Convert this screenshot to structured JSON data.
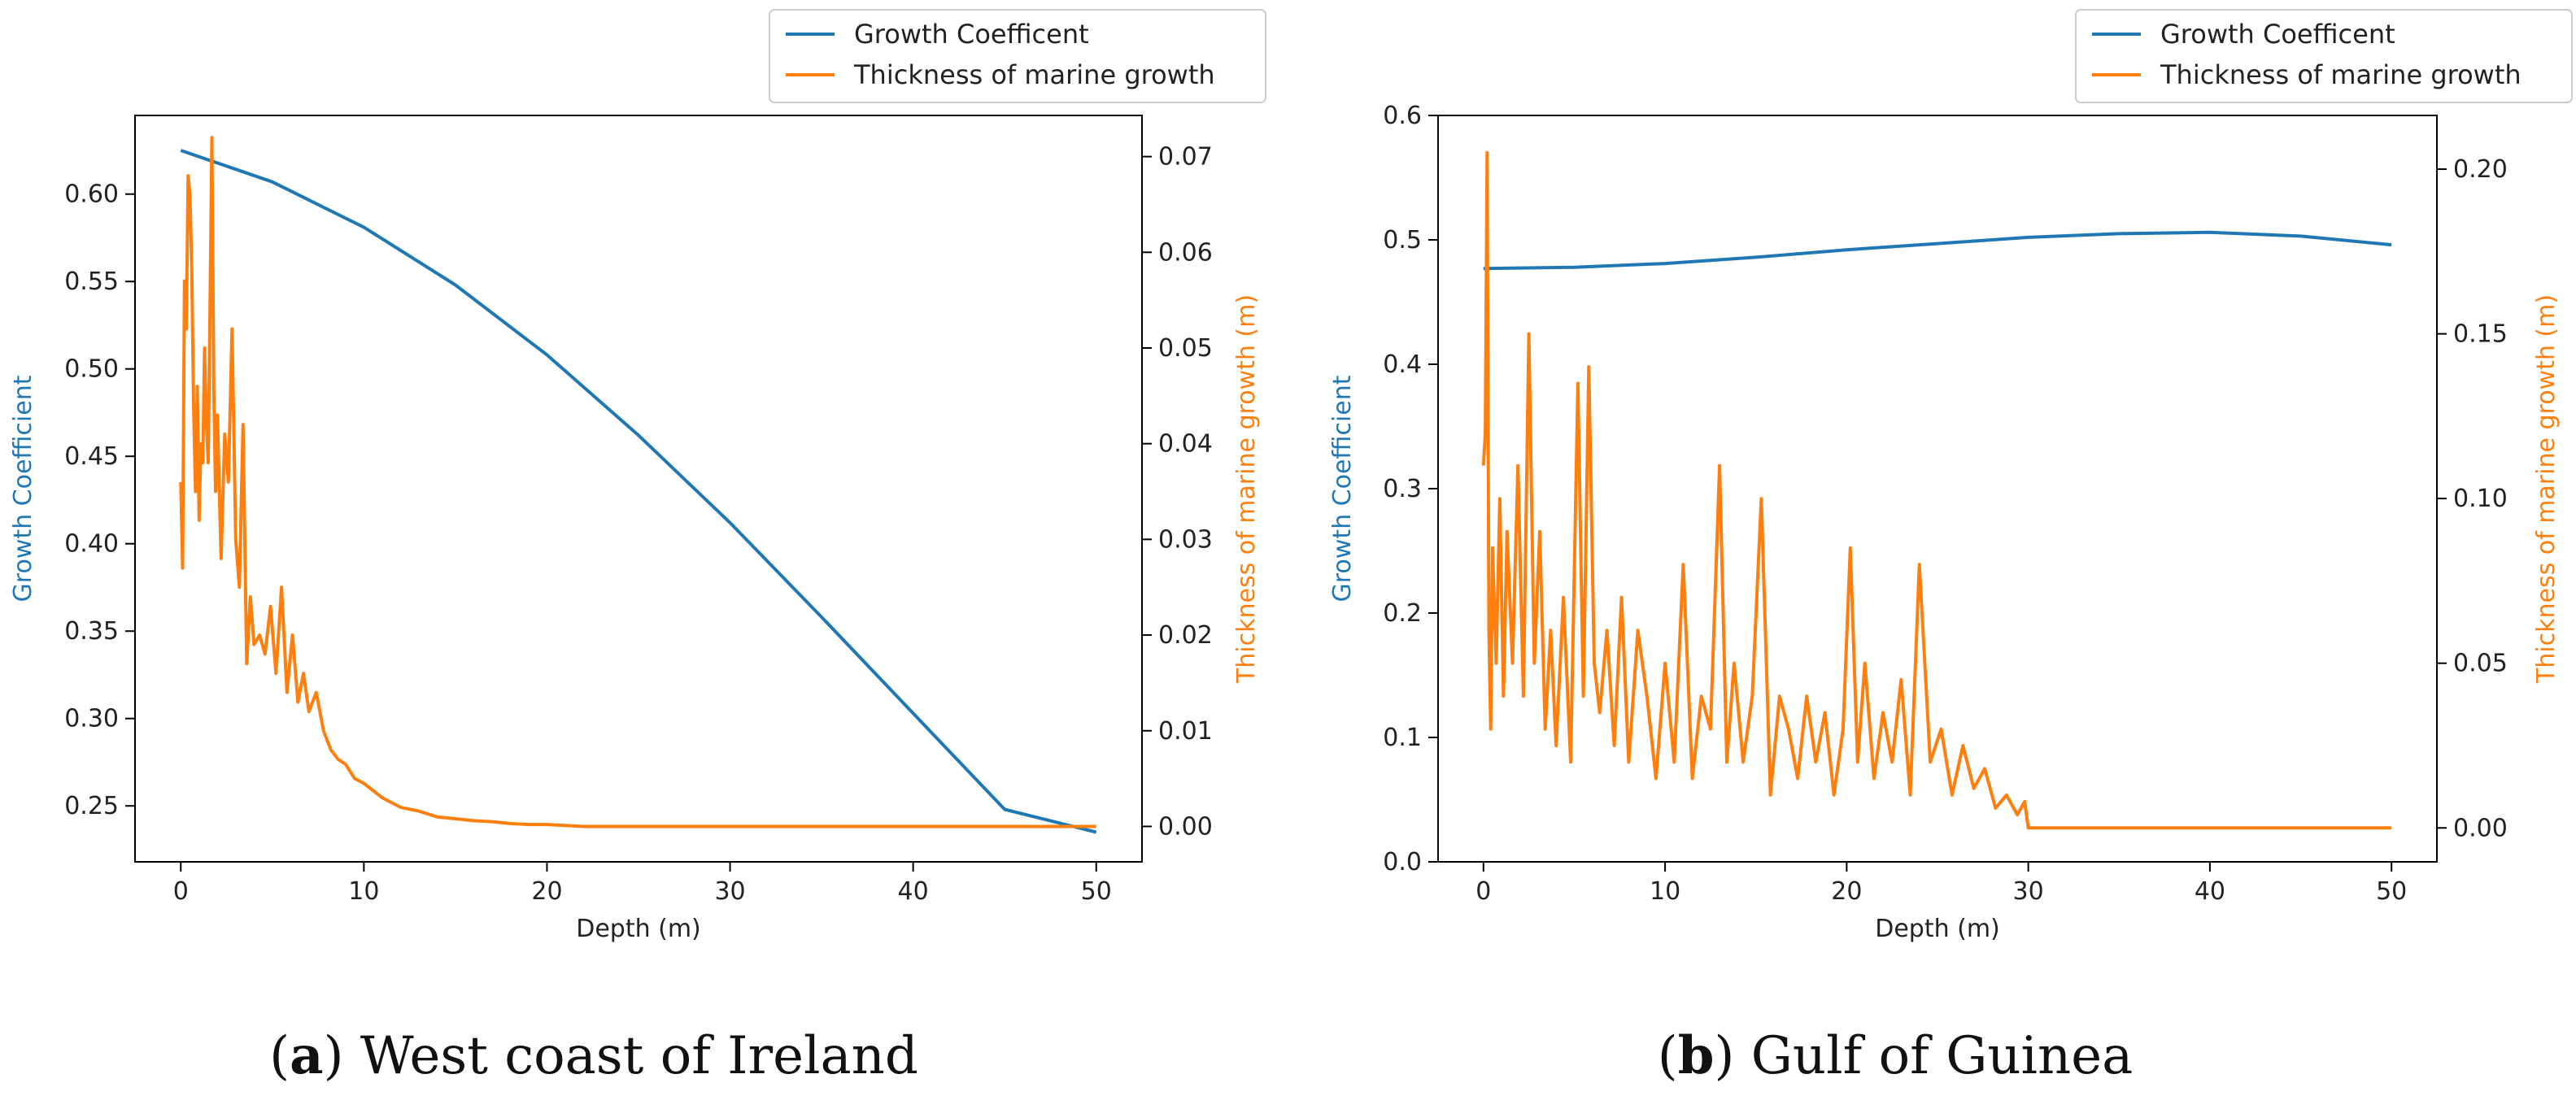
{
  "colors": {
    "coef": "#1f77b4",
    "thick": "#ff7f0e",
    "axis": "#000000"
  },
  "legend": [
    "Growth Coefficent",
    "Thickness of marine growth"
  ],
  "chart_data": [
    {
      "type": "line",
      "panel_letter": "a",
      "caption": "West coast of Ireland",
      "xlabel": "Depth (m)",
      "ylabel_left": "Growth Coefficient",
      "ylabel_right": "Thickness of marine growth (m)",
      "xlim": [
        -2.5,
        52.5
      ],
      "ylim_left": [
        0.218,
        0.645
      ],
      "ylim_right": [
        -0.0037,
        0.0743
      ],
      "xticks": [
        0,
        10,
        20,
        30,
        40,
        50
      ],
      "xtick_labels": [
        "0",
        "10",
        "20",
        "30",
        "40",
        "50"
      ],
      "yticks_left": [
        0.25,
        0.3,
        0.35,
        0.4,
        0.45,
        0.5,
        0.55,
        0.6
      ],
      "ytick_labels_left": [
        "0.25",
        "0.30",
        "0.35",
        "0.40",
        "0.45",
        "0.50",
        "0.55",
        "0.60"
      ],
      "yticks_right": [
        0.0,
        0.01,
        0.02,
        0.03,
        0.04,
        0.05,
        0.06,
        0.07
      ],
      "ytick_labels_right": [
        "0.00",
        "0.01",
        "0.02",
        "0.03",
        "0.04",
        "0.05",
        "0.06",
        "0.07"
      ],
      "series": [
        {
          "name": "Growth Coefficent",
          "axis": "left",
          "x": [
            0,
            5,
            10,
            15,
            20,
            25,
            30,
            35,
            40,
            45,
            50
          ],
          "y": [
            0.625,
            0.607,
            0.581,
            0.548,
            0.508,
            0.462,
            0.412,
            0.358,
            0.303,
            0.248,
            0.235
          ]
        },
        {
          "name": "Thickness of marine growth",
          "axis": "right",
          "x": [
            0,
            0.1,
            0.2,
            0.3,
            0.4,
            0.5,
            0.6,
            0.7,
            0.8,
            0.9,
            1.0,
            1.1,
            1.2,
            1.3,
            1.4,
            1.5,
            1.6,
            1.7,
            1.8,
            1.9,
            2.0,
            2.2,
            2.4,
            2.6,
            2.8,
            3.0,
            3.2,
            3.4,
            3.6,
            3.8,
            4.0,
            4.3,
            4.6,
            4.9,
            5.2,
            5.5,
            5.8,
            6.1,
            6.4,
            6.7,
            7.0,
            7.4,
            7.8,
            8.2,
            8.6,
            9.0,
            9.5,
            10,
            11,
            12,
            13,
            14,
            15,
            16,
            17,
            18,
            19,
            20,
            21,
            22,
            25,
            30,
            40,
            50
          ],
          "y": [
            0.036,
            0.027,
            0.057,
            0.052,
            0.068,
            0.066,
            0.058,
            0.044,
            0.035,
            0.046,
            0.032,
            0.04,
            0.038,
            0.05,
            0.042,
            0.038,
            0.055,
            0.072,
            0.046,
            0.035,
            0.043,
            0.028,
            0.041,
            0.036,
            0.052,
            0.03,
            0.025,
            0.042,
            0.017,
            0.024,
            0.019,
            0.02,
            0.018,
            0.023,
            0.016,
            0.025,
            0.014,
            0.02,
            0.013,
            0.016,
            0.012,
            0.014,
            0.01,
            0.008,
            0.007,
            0.0065,
            0.005,
            0.0045,
            0.003,
            0.002,
            0.0016,
            0.001,
            0.0008,
            0.0006,
            0.0005,
            0.0003,
            0.0002,
            0.0002,
            0.0001,
            0.0,
            0.0,
            0.0,
            0.0,
            0.0
          ]
        }
      ]
    },
    {
      "type": "line",
      "panel_letter": "b",
      "caption": "Gulf of Guinea",
      "xlabel": "Depth (m)",
      "ylabel_left": "Growth Coefficient",
      "ylabel_right": "Thickness of marine growth (m)",
      "xlim": [
        -2.5,
        52.5
      ],
      "ylim_left": [
        0.0,
        0.6
      ],
      "ylim_right": [
        -0.0103,
        0.2163
      ],
      "xticks": [
        0,
        10,
        20,
        30,
        40,
        50
      ],
      "xtick_labels": [
        "0",
        "10",
        "20",
        "30",
        "40",
        "50"
      ],
      "yticks_left": [
        0.0,
        0.1,
        0.2,
        0.3,
        0.4,
        0.5,
        0.6
      ],
      "ytick_labels_left": [
        "0.0",
        "0.1",
        "0.2",
        "0.3",
        "0.4",
        "0.5",
        "0.6"
      ],
      "yticks_right": [
        0.0,
        0.05,
        0.1,
        0.15,
        0.2
      ],
      "ytick_labels_right": [
        "0.00",
        "0.05",
        "0.10",
        "0.15",
        "0.20"
      ],
      "series": [
        {
          "name": "Growth Coefficent",
          "axis": "left",
          "x": [
            0,
            5,
            10,
            15,
            20,
            25,
            30,
            35,
            40,
            45,
            50
          ],
          "y": [
            0.477,
            0.478,
            0.481,
            0.486,
            0.492,
            0.497,
            0.502,
            0.505,
            0.506,
            0.503,
            0.496
          ]
        },
        {
          "name": "Thickness of marine growth",
          "axis": "right",
          "x": [
            0,
            0.1,
            0.2,
            0.3,
            0.4,
            0.5,
            0.7,
            0.9,
            1.1,
            1.3,
            1.6,
            1.9,
            2.2,
            2.5,
            2.8,
            3.1,
            3.4,
            3.7,
            4.0,
            4.4,
            4.8,
            5.2,
            5.5,
            5.8,
            6.1,
            6.4,
            6.8,
            7.2,
            7.6,
            8.0,
            8.5,
            9.0,
            9.5,
            10.0,
            10.5,
            11.0,
            11.5,
            12.0,
            12.5,
            13.0,
            13.4,
            13.8,
            14.3,
            14.8,
            15.3,
            15.8,
            16.3,
            16.8,
            17.3,
            17.8,
            18.3,
            18.8,
            19.3,
            19.8,
            20.2,
            20.6,
            21.0,
            21.5,
            22.0,
            22.5,
            23.0,
            23.5,
            24.0,
            24.6,
            25.2,
            25.8,
            26.4,
            27.0,
            27.6,
            28.2,
            28.8,
            29.4,
            29.8,
            30.0,
            35,
            40,
            45,
            50
          ],
          "y": [
            0.11,
            0.12,
            0.205,
            0.06,
            0.03,
            0.085,
            0.05,
            0.1,
            0.04,
            0.09,
            0.05,
            0.11,
            0.04,
            0.15,
            0.05,
            0.09,
            0.03,
            0.06,
            0.025,
            0.07,
            0.02,
            0.135,
            0.04,
            0.14,
            0.05,
            0.035,
            0.06,
            0.025,
            0.07,
            0.02,
            0.06,
            0.04,
            0.015,
            0.05,
            0.02,
            0.08,
            0.015,
            0.04,
            0.03,
            0.11,
            0.02,
            0.05,
            0.02,
            0.04,
            0.1,
            0.01,
            0.04,
            0.03,
            0.015,
            0.04,
            0.02,
            0.035,
            0.01,
            0.03,
            0.085,
            0.02,
            0.05,
            0.015,
            0.035,
            0.02,
            0.045,
            0.01,
            0.08,
            0.02,
            0.03,
            0.01,
            0.025,
            0.012,
            0.018,
            0.006,
            0.01,
            0.004,
            0.008,
            0.0,
            0.0,
            0.0,
            0.0,
            0.0
          ]
        }
      ]
    }
  ]
}
